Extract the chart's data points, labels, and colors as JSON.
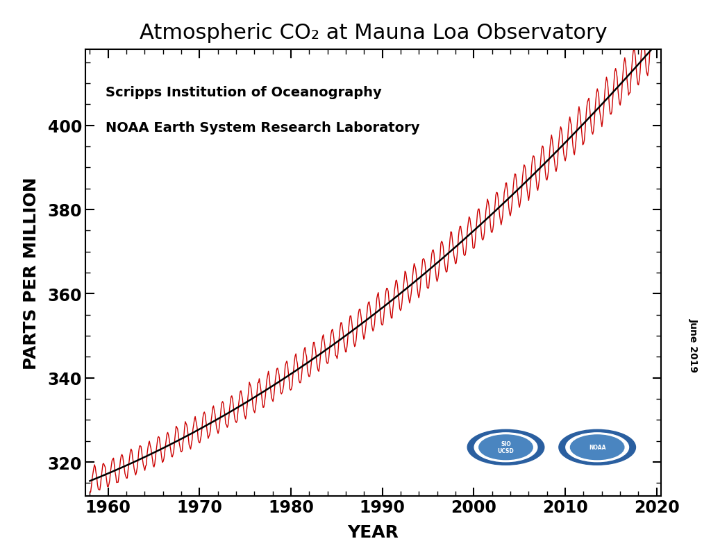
{
  "title": "Atmospheric CO₂ at Mauna Loa Observatory",
  "xlabel": "YEAR",
  "ylabel": "PARTS PER MILLION",
  "annotation_line1": "Scripps Institution of Oceanography",
  "annotation_line2": "NOAA Earth System Research Laboratory",
  "date_label": "June 2019",
  "xlim": [
    1957.5,
    2020.5
  ],
  "ylim": [
    312,
    418
  ],
  "xticks": [
    1960,
    1970,
    1980,
    1990,
    2000,
    2010,
    2020
  ],
  "yticks": [
    320,
    340,
    360,
    380,
    400
  ],
  "line_color_raw": "#cc0000",
  "line_color_trend": "#000000",
  "background_color": "#ffffff",
  "title_fontsize": 22,
  "label_fontsize": 18,
  "tick_fontsize": 17,
  "annotation_fontsize": 14
}
